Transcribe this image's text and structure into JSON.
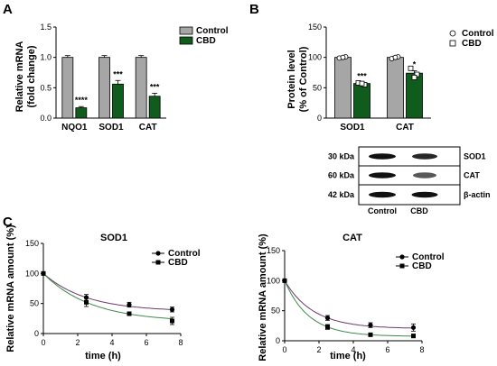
{
  "panels": {
    "a": "A",
    "b": "B",
    "c": "C"
  },
  "chart_data": [
    {
      "type": "bar",
      "ylabel": "Relative mRNA\n(fold change)",
      "ylim": [
        0,
        1.5
      ],
      "yticks": [
        "0.0",
        "0.5",
        "1.0",
        "1.5"
      ],
      "categories": [
        "NQO1",
        "SOD1",
        "CAT"
      ],
      "series": [
        {
          "name": "Control",
          "color": "#a6a6a6",
          "values": [
            1.0,
            1.0,
            1.0
          ],
          "errors": [
            0.03,
            0.03,
            0.03
          ]
        },
        {
          "name": "CBD",
          "color": "#0f5c1c",
          "values": [
            0.17,
            0.56,
            0.36
          ],
          "errors": [
            0.02,
            0.06,
            0.05
          ]
        }
      ],
      "significance": [
        "****",
        "***",
        "***"
      ],
      "legend": "top-right"
    },
    {
      "type": "bar",
      "ylabel": "Protein level\n(% of Control)",
      "ylim": [
        0,
        150
      ],
      "yticks": [
        "0",
        "50",
        "100",
        "150"
      ],
      "categories": [
        "SOD1",
        "CAT"
      ],
      "series": [
        {
          "name": "Control",
          "color": "#a6a6a6",
          "values": [
            100,
            100
          ],
          "errors": [
            2,
            2
          ],
          "points": [
            [
              99,
              101,
              100
            ],
            [
              98,
              101,
              100
            ]
          ]
        },
        {
          "name": "CBD",
          "color": "#0f5c1c",
          "values": [
            57,
            74
          ],
          "errors": [
            2,
            4
          ],
          "points": [
            [
              58,
              55,
              57
            ],
            [
              82,
              72,
              67
            ]
          ]
        }
      ],
      "significance": [
        "***",
        "*"
      ],
      "legend": "top-right",
      "blot": {
        "markers": [
          "30 kDa",
          "60 kDa",
          "42 kDa"
        ],
        "proteins": [
          "SOD1",
          "CAT",
          "β-actin"
        ],
        "lanes": [
          "Control",
          "CBD"
        ]
      }
    },
    {
      "type": "line",
      "title": "SOD1",
      "xlabel": "time (h)",
      "ylabel": "Relative mRNA amount (%)",
      "xlim": [
        0,
        8
      ],
      "ylim": [
        0,
        150
      ],
      "xticks": [
        "0",
        "2",
        "4",
        "6",
        "8"
      ],
      "yticks": [
        "0",
        "50",
        "100",
        "150"
      ],
      "series": [
        {
          "name": "Control",
          "marker": "circle",
          "color": "#6b3a6b",
          "x": [
            0,
            2.5,
            5,
            7.5
          ],
          "y": [
            100,
            60,
            48,
            40
          ],
          "errors": [
            2,
            5,
            4,
            4
          ]
        },
        {
          "name": "CBD",
          "marker": "square",
          "color": "#3f8a4a",
          "x": [
            0,
            2.5,
            5,
            7.5
          ],
          "y": [
            100,
            52,
            33,
            21
          ],
          "errors": [
            2,
            7,
            3,
            6
          ]
        }
      ],
      "legend": "top-right"
    },
    {
      "type": "line",
      "title": "CAT",
      "xlabel": "time (h)",
      "ylabel": "Relative mRNA amount (%)",
      "xlim": [
        0,
        8
      ],
      "ylim": [
        0,
        150
      ],
      "xticks": [
        "0",
        "2",
        "4",
        "6",
        "8"
      ],
      "yticks": [
        "0",
        "50",
        "100",
        "150"
      ],
      "series": [
        {
          "name": "Control",
          "marker": "circle",
          "color": "#6b3a6b",
          "x": [
            0,
            2.5,
            5,
            7.5
          ],
          "y": [
            100,
            38,
            26,
            22
          ],
          "errors": [
            2,
            4,
            4,
            6
          ]
        },
        {
          "name": "CBD",
          "marker": "square",
          "color": "#3f8a4a",
          "x": [
            0,
            2.5,
            5,
            7.5
          ],
          "y": [
            100,
            23,
            10,
            8
          ],
          "errors": [
            2,
            4,
            2,
            3
          ]
        }
      ],
      "legend": "top-right"
    }
  ]
}
